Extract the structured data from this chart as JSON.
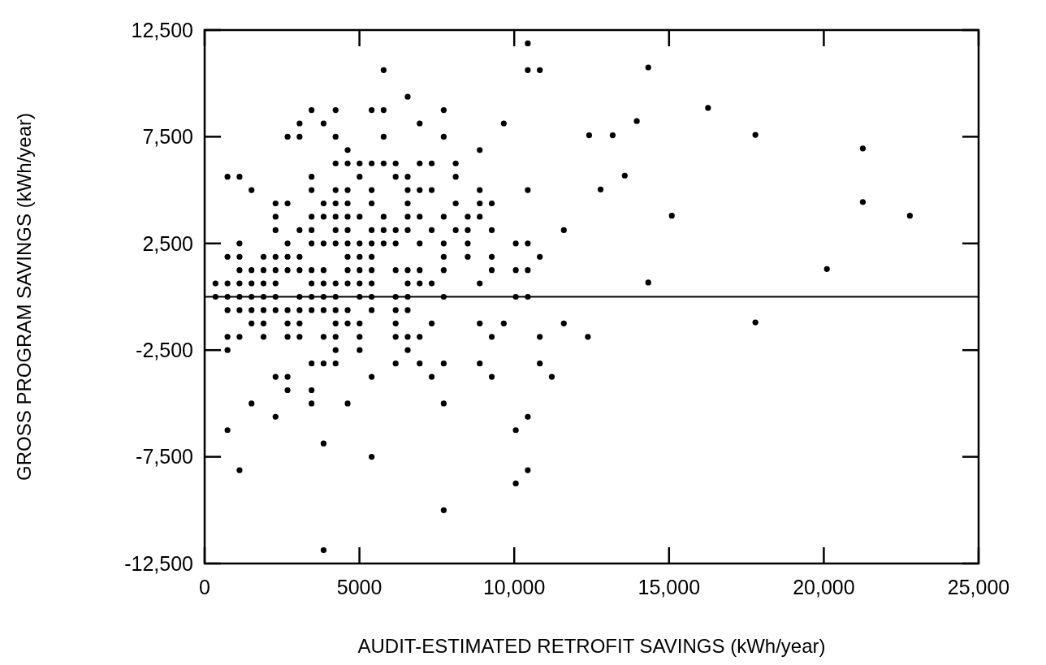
{
  "chart_data": {
    "type": "scatter",
    "xlabel": "AUDIT-ESTIMATED RETROFIT SAVINGS (kWh/year)",
    "ylabel": "GROSS PROGRAM SAVINGS (kWh/year)",
    "xlim": [
      0,
      25000
    ],
    "ylim": [
      -12500,
      12500
    ],
    "xticks": [
      0,
      5000,
      {
        "value": 10000,
        "label": "10,000"
      },
      {
        "value": 15000,
        "label": "15,000"
      },
      {
        "value": 20000,
        "label": "20,000"
      },
      {
        "value": 25000,
        "label": "25,000"
      }
    ],
    "yticks": [
      {
        "value": -12500,
        "label": "-12,500"
      },
      {
        "value": -7500,
        "label": "-7,500"
      },
      {
        "value": -2500,
        "label": "-2,500"
      },
      {
        "value": 2500,
        "label": "2,500"
      },
      {
        "value": 7500,
        "label": "7,500"
      },
      {
        "value": 12500,
        "label": "12,500"
      }
    ],
    "grid": false,
    "marker": "circle",
    "ref_lines": [
      {
        "axis": "y",
        "value": 0,
        "color": "#000000",
        "line_style": "solid"
      }
    ],
    "series": [
      {
        "color": "#000000",
        "x": [
          10438,
          5782,
          10438,
          10826,
          14330,
          6558,
          3454,
          4230,
          5394,
          5782,
          7722,
          16260,
          3066,
          3842,
          6946,
          9662,
          13960,
          2678,
          3066,
          4230,
          5782,
          7722,
          12420,
          13180,
          17790,
          4618,
          8886,
          21260,
          4230,
          4618,
          5006,
          5394,
          5782,
          6170,
          6946,
          7334,
          8110,
          738,
          1126,
          3454,
          5006,
          6170,
          6558,
          8110,
          13570,
          1514,
          3454,
          4230,
          4618,
          5394,
          6558,
          6946,
          7334,
          8886,
          10438,
          12790,
          2290,
          2678,
          3842,
          4230,
          4618,
          5394,
          6558,
          8110,
          8886,
          9274,
          21260,
          2290,
          3454,
          3842,
          4230,
          4618,
          5006,
          5782,
          6558,
          6946,
          7722,
          8498,
          8886,
          15090,
          22780,
          2290,
          3066,
          3454,
          4230,
          4618,
          5394,
          5782,
          6170,
          6558,
          7334,
          8110,
          8498,
          9274,
          11602,
          1126,
          2678,
          3454,
          3842,
          4230,
          4618,
          5006,
          5394,
          5782,
          6170,
          6946,
          7722,
          8498,
          10050,
          10438,
          738,
          1126,
          1902,
          2290,
          2678,
          3066,
          4618,
          5006,
          5394,
          7722,
          8498,
          9274,
          10826,
          1126,
          1514,
          1902,
          2290,
          2678,
          3066,
          3454,
          3842,
          4618,
          5006,
          5394,
          6170,
          6558,
          6946,
          7722,
          9274,
          10050,
          10438,
          20100,
          350,
          738,
          1126,
          1514,
          1902,
          2290,
          3454,
          3842,
          4230,
          4618,
          5006,
          5394,
          6558,
          6946,
          7334,
          8886,
          14330,
          350,
          738,
          1126,
          1514,
          1902,
          2290,
          3066,
          3454,
          3842,
          4230,
          5006,
          5394,
          6170,
          6558,
          7722,
          10050,
          10438,
          738,
          1126,
          1514,
          1902,
          2290,
          2678,
          3066,
          3454,
          3842,
          4230,
          4618,
          5394,
          6170,
          6558,
          1514,
          1902,
          2678,
          3066,
          4230,
          4618,
          5006,
          6170,
          7334,
          8886,
          9662,
          11602,
          17790,
          738,
          1126,
          1902,
          2678,
          3066,
          3842,
          4230,
          5006,
          6170,
          6558,
          6946,
          9274,
          10826,
          12378,
          738,
          4230,
          5006,
          6558,
          3454,
          3842,
          4230,
          6170,
          6946,
          7722,
          8886,
          10826,
          2290,
          2678,
          5394,
          7334,
          9274,
          11214,
          2678,
          3454,
          1514,
          3454,
          4618,
          7722,
          2290,
          10438,
          738,
          10050,
          3842,
          5394,
          1126,
          10438,
          10050,
          7722,
          3842
        ],
        "values": [
          11875,
          10625,
          10625,
          10625,
          10750,
          9375,
          8750,
          8750,
          8750,
          8750,
          8750,
          8850,
          8125,
          8125,
          8125,
          8125,
          8230,
          7500,
          7500,
          7500,
          7500,
          7500,
          7570,
          7570,
          7590,
          6875,
          6875,
          6950,
          6250,
          6250,
          6250,
          6250,
          6250,
          6250,
          6250,
          6250,
          6250,
          5625,
          5625,
          5625,
          5625,
          5625,
          5625,
          5625,
          5680,
          5000,
          5000,
          5000,
          5000,
          5000,
          5000,
          5000,
          5000,
          5000,
          5000,
          5030,
          4375,
          4375,
          4375,
          4375,
          4375,
          4375,
          4375,
          4375,
          4375,
          4375,
          4440,
          3750,
          3750,
          3750,
          3750,
          3750,
          3750,
          3750,
          3750,
          3750,
          3750,
          3750,
          3750,
          3800,
          3800,
          3125,
          3125,
          3125,
          3125,
          3125,
          3125,
          3125,
          3125,
          3125,
          3125,
          3125,
          3125,
          3125,
          3125,
          2500,
          2500,
          2500,
          2500,
          2500,
          2500,
          2500,
          2500,
          2500,
          2500,
          2500,
          2500,
          2500,
          2500,
          2500,
          1875,
          1875,
          1875,
          1875,
          1875,
          1875,
          1875,
          1875,
          1875,
          1875,
          1875,
          1875,
          1875,
          1250,
          1250,
          1250,
          1250,
          1250,
          1250,
          1250,
          1250,
          1250,
          1250,
          1250,
          1250,
          1250,
          1250,
          1250,
          1250,
          1250,
          1250,
          1300,
          625,
          625,
          625,
          625,
          625,
          625,
          625,
          625,
          625,
          625,
          625,
          625,
          625,
          625,
          625,
          625,
          670,
          0,
          0,
          0,
          0,
          0,
          0,
          0,
          0,
          0,
          0,
          0,
          0,
          0,
          0,
          0,
          0,
          0,
          -625,
          -625,
          -625,
          -625,
          -625,
          -625,
          -625,
          -625,
          -625,
          -625,
          -625,
          -625,
          -625,
          -625,
          -1250,
          -1250,
          -1250,
          -1250,
          -1250,
          -1250,
          -1250,
          -1250,
          -1250,
          -1250,
          -1250,
          -1250,
          -1200,
          -1875,
          -1875,
          -1875,
          -1875,
          -1875,
          -1875,
          -1875,
          -1875,
          -1875,
          -1875,
          -1875,
          -1875,
          -1875,
          -1875,
          -2500,
          -2500,
          -2500,
          -2500,
          -3125,
          -3125,
          -3125,
          -3125,
          -3125,
          -3125,
          -3125,
          -3125,
          -3750,
          -3750,
          -3750,
          -3750,
          -3750,
          -3750,
          -4375,
          -4375,
          -5000,
          -5000,
          -5000,
          -5000,
          -5625,
          -5625,
          -6250,
          -6250,
          -6875,
          -7500,
          -8125,
          -8125,
          -8750,
          -10000,
          -11875
        ]
      }
    ]
  }
}
